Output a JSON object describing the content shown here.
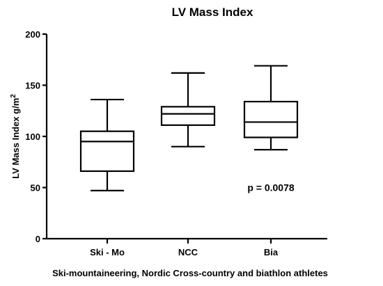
{
  "chart_data": {
    "type": "box",
    "title": "LV Mass Index",
    "ylabel": "LV Mass Index  g/m",
    "ylabel_superscript": "2",
    "xlabel": "Ski-mountaineering, Nordic Cross-country and biathlon athletes",
    "ylim": [
      0,
      200
    ],
    "yticks": [
      0,
      50,
      100,
      150,
      200
    ],
    "grid": false,
    "categories": [
      "Ski - Mo",
      "NCC",
      "Bia"
    ],
    "boxes": [
      {
        "category": "Ski - Mo",
        "min": 47,
        "q1": 66,
        "median": 95,
        "q3": 105,
        "max": 136
      },
      {
        "category": "NCC",
        "min": 90,
        "q1": 111,
        "median": 122,
        "q3": 129,
        "max": 162
      },
      {
        "category": "Bia",
        "min": 87,
        "q1": 99,
        "median": 114,
        "q3": 134,
        "max": 169
      }
    ],
    "annotations": [
      {
        "text": "p = 0.0078",
        "x": "Bia",
        "y": 50
      }
    ]
  }
}
